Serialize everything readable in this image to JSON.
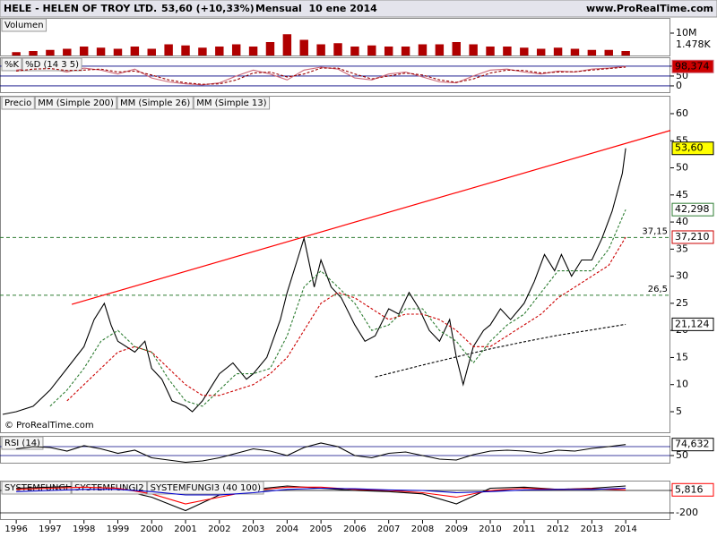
{
  "header": {
    "title": "HELE - HELEN OF TROY LTD.",
    "quote": "53,60 (+10,33%)",
    "period": "Mensual  10 ene 2014",
    "site": "www.ProRealTime.com"
  },
  "watermark": "© ProRealTime.com",
  "chart_data": [
    {
      "type": "bar",
      "title": "Volumen",
      "color": "#b00000",
      "x": [
        1996,
        1996.5,
        1997,
        1997.5,
        1998,
        1998.5,
        1999,
        1999.5,
        2000,
        2000.5,
        2001,
        2001.5,
        2002,
        2002.5,
        2003,
        2003.5,
        2004,
        2004.5,
        2005,
        2005.5,
        2006,
        2006.5,
        2007,
        2007.5,
        2008,
        2008.5,
        2009,
        2009.5,
        2010,
        2010.5,
        2011,
        2011.5,
        2012,
        2012.5,
        2013,
        2013.5,
        2014
      ],
      "values": [
        1.5,
        2,
        2.5,
        3,
        4,
        3.5,
        3,
        4,
        3,
        5,
        4.5,
        3.5,
        4,
        5,
        4,
        6,
        9.5,
        7,
        5,
        5.5,
        4,
        4.5,
        4,
        4,
        5,
        5,
        6,
        5,
        4,
        4,
        3.5,
        3,
        3.5,
        3,
        2.5,
        2.5,
        2
      ],
      "ylim": [
        0,
        16.8
      ],
      "yticks": [
        {
          "value": 10,
          "label": "10M"
        }
      ],
      "annotation": "1.478K"
    },
    {
      "type": "line",
      "grid": true,
      "grid_color": "#000080",
      "x": [
        1996,
        1996.5,
        1997,
        1997.5,
        1998,
        1998.5,
        1999,
        1999.5,
        2000,
        2000.5,
        2001,
        2001.5,
        2002,
        2002.5,
        2003,
        2003.5,
        2004,
        2004.5,
        2005,
        2005.5,
        2006,
        2006.5,
        2007,
        2007.5,
        2008,
        2008.5,
        2009,
        2009.5,
        2010,
        2010.5,
        2011,
        2011.5,
        2012,
        2012.5,
        2013,
        2013.5,
        2014
      ],
      "series": [
        {
          "name": "%K",
          "color": "#cc6677",
          "last_label": "98,374",
          "label_fill": "#cc0000",
          "label_text": "#ffffff",
          "values": [
            80,
            90,
            85,
            70,
            90,
            80,
            60,
            85,
            40,
            20,
            10,
            5,
            15,
            50,
            80,
            60,
            30,
            80,
            95,
            85,
            40,
            30,
            60,
            70,
            45,
            20,
            15,
            50,
            80,
            85,
            70,
            60,
            75,
            70,
            85,
            90,
            98.374
          ]
        },
        {
          "name": "%D (14 3 5)",
          "color": "#990000",
          "dash": true,
          "values": [
            75,
            85,
            88,
            78,
            80,
            85,
            70,
            75,
            55,
            30,
            15,
            8,
            10,
            30,
            65,
            70,
            45,
            60,
            90,
            90,
            60,
            35,
            50,
            65,
            55,
            30,
            18,
            35,
            65,
            80,
            78,
            65,
            70,
            72,
            80,
            88,
            95
          ]
        }
      ],
      "ylim": [
        -32,
        145
      ],
      "yticks": [
        0,
        50,
        100
      ]
    },
    {
      "type": "line",
      "xlim": [
        1995.52,
        2015.32
      ],
      "xticks": [
        1996,
        1997,
        1998,
        1999,
        2000,
        2001,
        2002,
        2003,
        2004,
        2005,
        2006,
        2007,
        2008,
        2009,
        2010,
        2011,
        2012,
        2013,
        2014
      ],
      "ylim": [
        1.2,
        63.3
      ],
      "yticks": [
        5,
        10,
        15,
        20,
        25,
        30,
        35,
        40,
        45,
        50,
        55,
        60
      ],
      "series": [
        {
          "name": "Precio",
          "color": "#000000",
          "last_label": "53,60",
          "label_fill": "#ffff00",
          "label_text": "#000000",
          "x": [
            1995.6,
            1996,
            1996.5,
            1997,
            1997.5,
            1998,
            1998.3,
            1998.6,
            1998.8,
            1999,
            1999.5,
            1999.8,
            2000,
            2000.3,
            2000.6,
            2001,
            2001.2,
            2001.5,
            2001.8,
            2002,
            2002.4,
            2002.8,
            2003,
            2003.4,
            2003.8,
            2004,
            2004.3,
            2004.5,
            2004.8,
            2005,
            2005.3,
            2005.6,
            2006,
            2006.3,
            2006.6,
            2007,
            2007.3,
            2007.6,
            2007.9,
            2008.2,
            2008.5,
            2008.8,
            2009,
            2009.2,
            2009.5,
            2009.8,
            2010,
            2010.3,
            2010.6,
            2011,
            2011.3,
            2011.6,
            2011.9,
            2012.1,
            2012.4,
            2012.7,
            2013,
            2013.3,
            2013.6,
            2013.9,
            2014
          ],
          "values": [
            4.5,
            5,
            6,
            9,
            13,
            17,
            22,
            25,
            21,
            18,
            16,
            18,
            13,
            11,
            7,
            6,
            5,
            7,
            10,
            12,
            14,
            11,
            12,
            15,
            22,
            27,
            33,
            37,
            28,
            33,
            28,
            26,
            21,
            18,
            19,
            24,
            23,
            27,
            24,
            20,
            18,
            22,
            15,
            10,
            17,
            20,
            21,
            24,
            22,
            25,
            29,
            34,
            31,
            34,
            30,
            33,
            33,
            37,
            42,
            49,
            53.6
          ]
        },
        {
          "name": "MM (Simple 200)",
          "color": "#000000",
          "dash": true,
          "last_label": "21,124",
          "x": [
            2006.6,
            2008,
            2009,
            2010,
            2011,
            2012,
            2013,
            2014
          ],
          "values": [
            11.4,
            13.6,
            15.1,
            16.6,
            17.9,
            19.1,
            20.1,
            21.124
          ]
        },
        {
          "name": "MM (Simple 26)",
          "color": "#cc0000",
          "dash": true,
          "last_label": "37,210",
          "x": [
            1997.5,
            1998,
            1998.5,
            1999,
            1999.5,
            2000,
            2000.5,
            2001,
            2001.5,
            2002,
            2002.5,
            2003,
            2003.5,
            2004,
            2004.5,
            2005,
            2005.5,
            2006,
            2006.5,
            2007,
            2007.5,
            2008,
            2008.5,
            2009,
            2009.5,
            2010,
            2010.5,
            2011,
            2011.5,
            2012,
            2012.5,
            2013,
            2013.5,
            2014
          ],
          "values": [
            7,
            10,
            13,
            16,
            17,
            16,
            13,
            10,
            8,
            8,
            9,
            10,
            12,
            15,
            20,
            25,
            27,
            26,
            24,
            22,
            23,
            23,
            22,
            20,
            17,
            17,
            19,
            21,
            23,
            26,
            28,
            30,
            32,
            37.21
          ]
        },
        {
          "name": "MM (Simple 13)",
          "color": "#2e7d32",
          "dash": true,
          "last_label": "42,298",
          "x": [
            1997,
            1997.5,
            1998,
            1998.5,
            1999,
            1999.5,
            2000,
            2000.5,
            2001,
            2001.5,
            2002,
            2002.5,
            2003,
            2003.5,
            2004,
            2004.5,
            2005,
            2005.5,
            2006,
            2006.5,
            2007,
            2007.5,
            2008,
            2008.5,
            2009,
            2009.5,
            2010,
            2010.5,
            2011,
            2011.5,
            2012,
            2012.5,
            2013,
            2013.5,
            2014
          ],
          "values": [
            6,
            9,
            13,
            18,
            20,
            17,
            16,
            11,
            7,
            6,
            9,
            12,
            12,
            13,
            19,
            28,
            31,
            28,
            25,
            20,
            21,
            24,
            24,
            20,
            18,
            14,
            18,
            21,
            23,
            27,
            31,
            31,
            31,
            35,
            42.298
          ]
        }
      ],
      "levels": [
        {
          "value": 37.15,
          "label": "37,15"
        },
        {
          "value": 26.5,
          "label": "26,5"
        }
      ],
      "level_color": "#2e7d32",
      "trendline": {
        "color": "#ff0000",
        "x": [
          1997.64,
          2015.32
        ],
        "y": [
          24.8,
          56.9
        ]
      }
    },
    {
      "type": "line",
      "grid": true,
      "grid_color": "#000080",
      "x": [
        1996,
        1996.5,
        1997,
        1997.5,
        1998,
        1998.5,
        1999,
        1999.5,
        2000,
        2000.5,
        2001,
        2001.5,
        2002,
        2002.5,
        2003,
        2003.5,
        2004,
        2004.5,
        2005,
        2005.5,
        2006,
        2006.5,
        2007,
        2007.5,
        2008,
        2008.5,
        2009,
        2009.5,
        2010,
        2010.5,
        2011,
        2011.5,
        2012,
        2012.5,
        2013,
        2013.5,
        2014
      ],
      "series": [
        {
          "name": "RSI (14)",
          "color": "#000000",
          "last_label": "74,632",
          "values": [
            65,
            70,
            68,
            60,
            72,
            65,
            55,
            62,
            45,
            40,
            35,
            38,
            45,
            55,
            65,
            60,
            50,
            68,
            78,
            70,
            50,
            45,
            55,
            58,
            50,
            42,
            40,
            52,
            60,
            62,
            60,
            55,
            62,
            60,
            66,
            70,
            74.632
          ]
        }
      ],
      "ylim": [
        34,
        94
      ],
      "yticks": [
        50
      ],
      "levels": [
        70
      ]
    },
    {
      "type": "line",
      "grid": true,
      "grid_color": "#000000",
      "x": [
        1996,
        1997,
        1998,
        1999,
        2000,
        2001,
        2002,
        2003,
        2004,
        2005,
        2006,
        2007,
        2008,
        2009,
        2010,
        2011,
        2012,
        2013,
        2014
      ],
      "series": [
        {
          "name": "SYSTEMFUNGI",
          "color": "#000000",
          "values": [
            20,
            30,
            40,
            10,
            -60,
            -180,
            -40,
            10,
            40,
            20,
            0,
            -10,
            -30,
            -120,
            20,
            30,
            10,
            20,
            40
          ]
        },
        {
          "name": "SYSTEMFUNGI2",
          "color": "#ff0000",
          "last_label": "5,816",
          "values": [
            10,
            20,
            30,
            20,
            -30,
            -120,
            -60,
            0,
            30,
            30,
            10,
            0,
            -20,
            -60,
            0,
            20,
            10,
            15,
            5.816
          ]
        },
        {
          "name": "SYSTEMFUNGI3 (40 100)",
          "color": "#0000cc",
          "values": [
            -10,
            0,
            10,
            10,
            -10,
            -40,
            -40,
            -20,
            10,
            20,
            15,
            5,
            0,
            -20,
            -10,
            5,
            10,
            10,
            20
          ]
        }
      ],
      "ylim": [
        -256,
        88
      ],
      "yticks": [
        -200,
        0
      ]
    }
  ]
}
